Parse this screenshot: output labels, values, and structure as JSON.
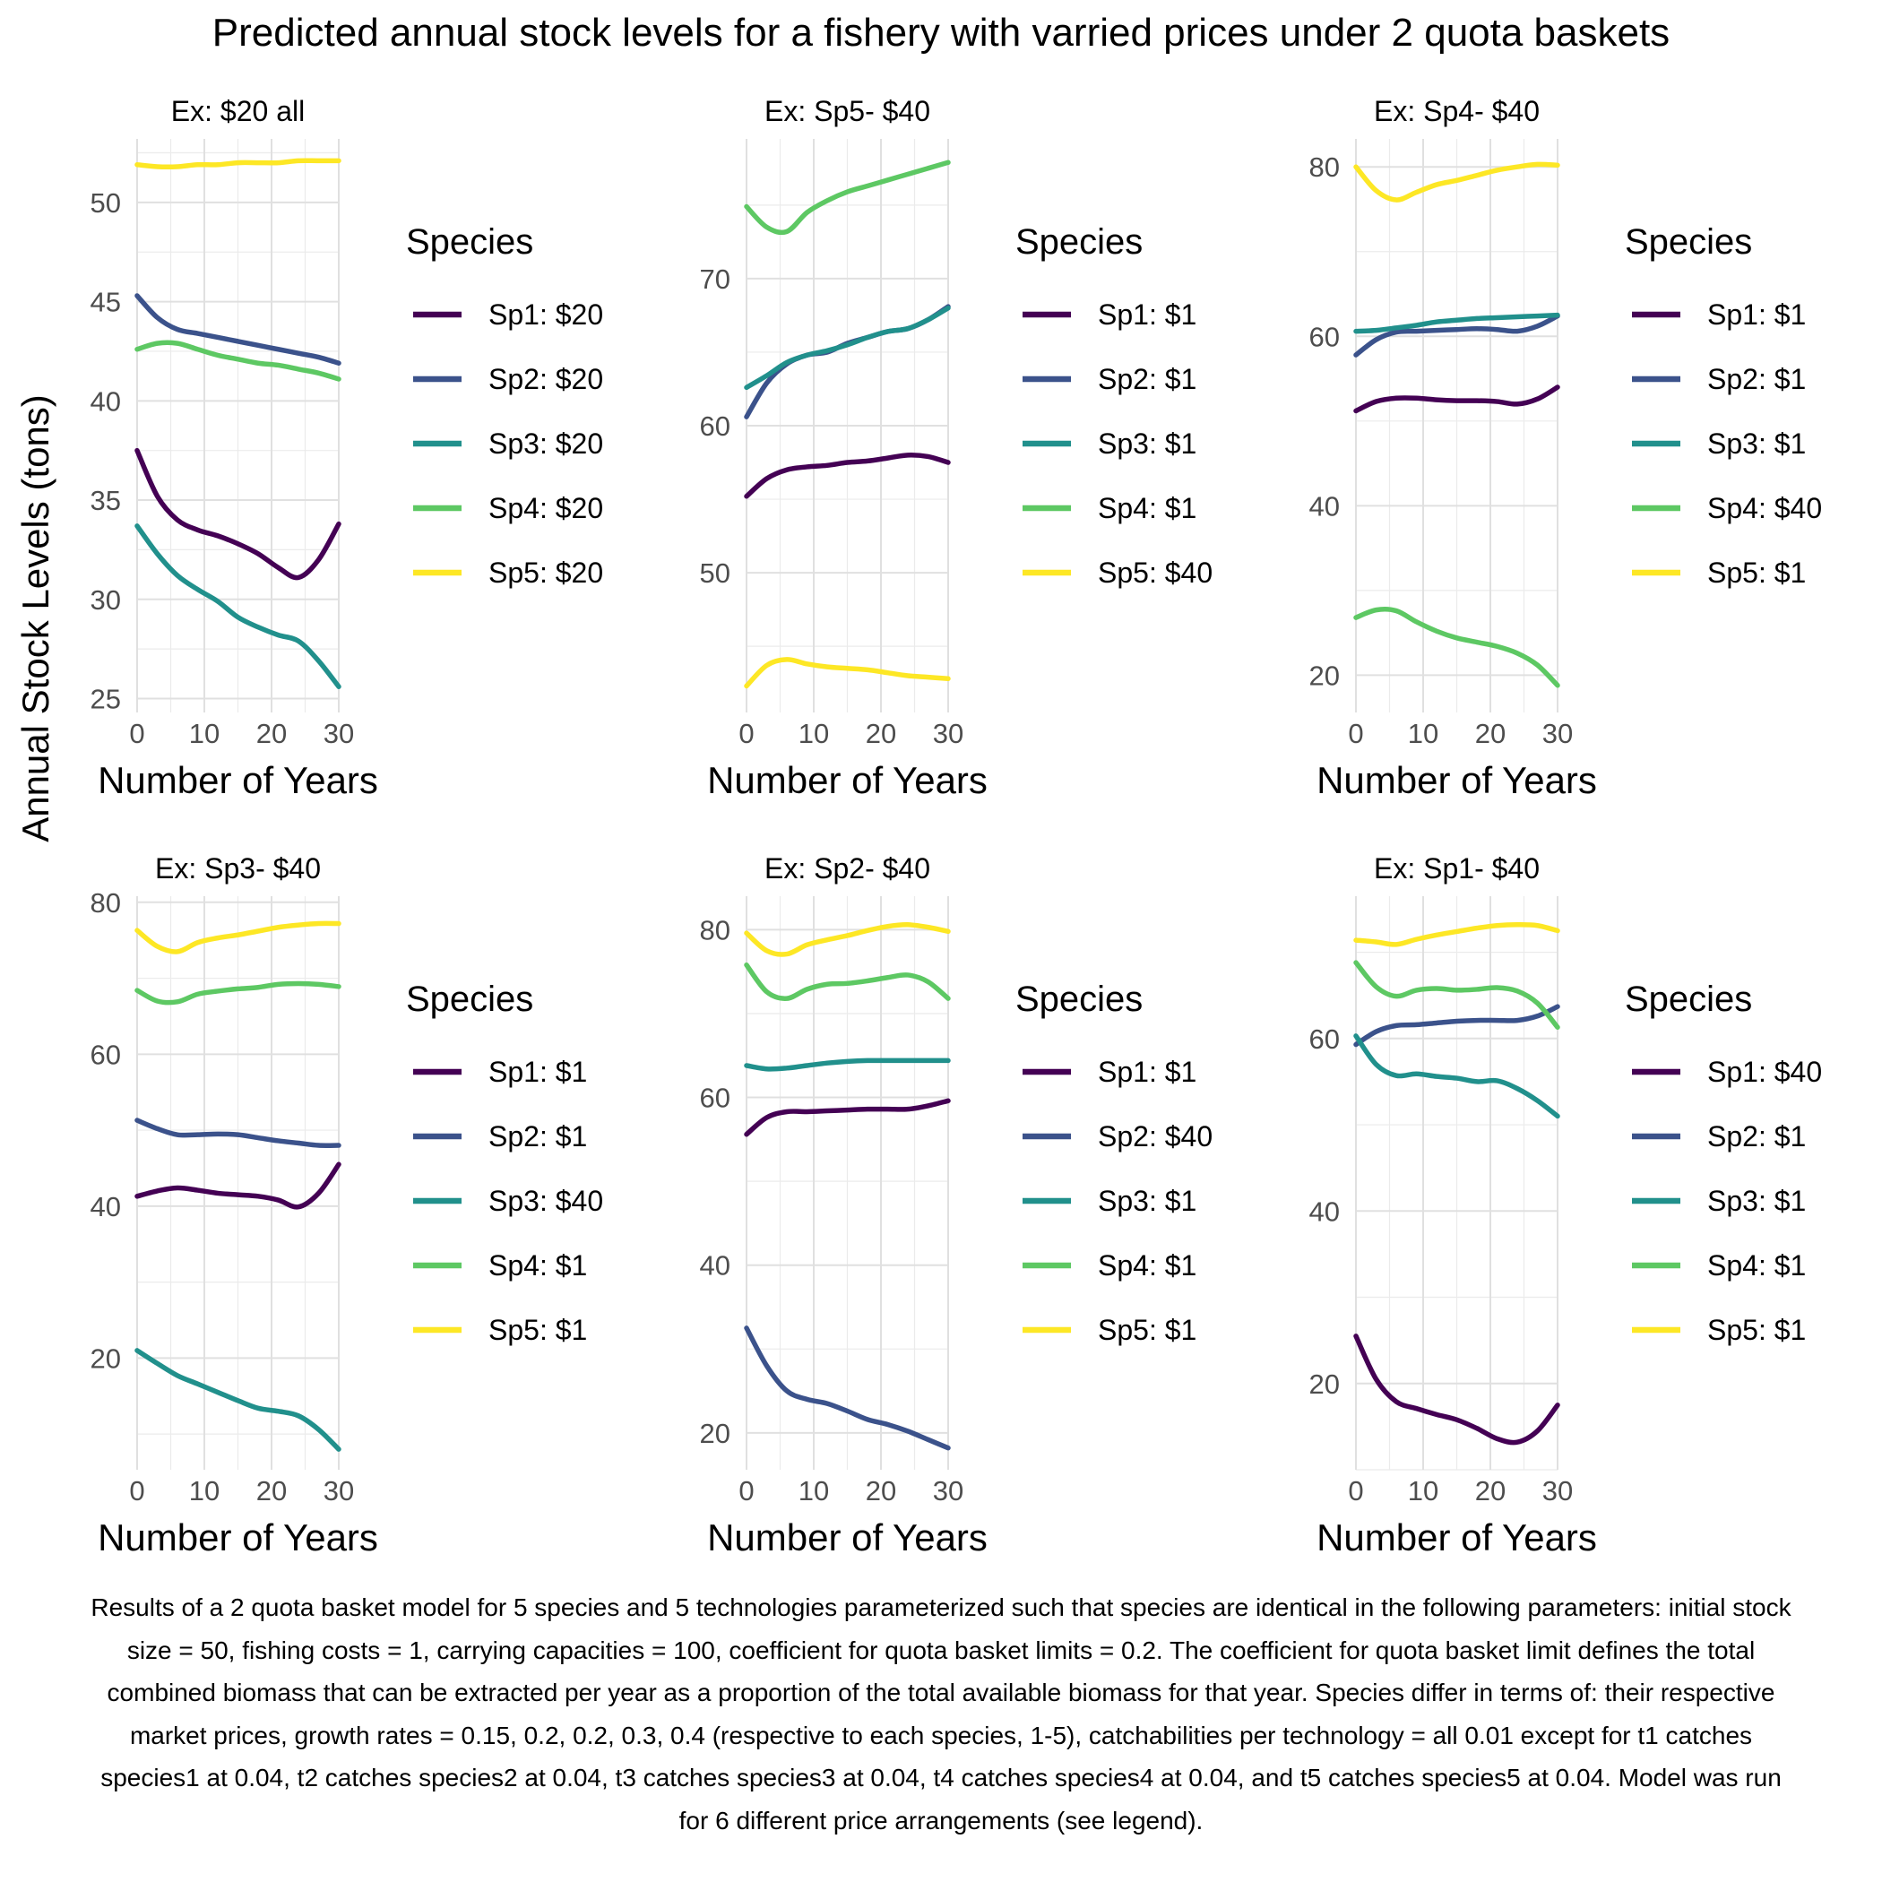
{
  "title": "Predicted annual stock levels for a fishery with varried prices under 2 quota baskets",
  "y_axis_label": "Annual Stock Levels (tons)",
  "caption": "Results of a 2 quota basket model for 5 species and 5 technologies parameterized such that species are identical in the following parameters: initial stock size = 50, fishing costs = 1, carrying capacities = 100, coefficient for quota basket limits = 0.2. The coefficient for quota basket limit defines the total combined biomass that can be extracted per year as a proportion of the total available biomass for that year. Species differ in terms of: their respective market prices, growth rates = 0.15, 0.2, 0.2, 0.3, 0.4 (respective to each species, 1-5), catchabilities per technology = all 0.01 except for t1 catches species1 at 0.04, t2 catches species2 at 0.04, t3 catches species3 at 0.04, t4 catches species4 at 0.04, and t5 catches species5 at 0.04. Model was run for 6 different price arrangements (see legend).",
  "colors": {
    "Sp1": "#440154",
    "Sp2": "#3b528b",
    "Sp3": "#21908c",
    "Sp4": "#5dc863",
    "Sp5": "#fde725"
  },
  "chart_data": [
    {
      "type": "line",
      "title": "Ex: $20 all",
      "xlabel": "Number of Years",
      "xlim": [
        0,
        30
      ],
      "xticks": [
        0,
        10,
        20,
        30
      ],
      "ylim": [
        24.3,
        53.2
      ],
      "yticks": [
        25,
        30,
        35,
        40,
        45,
        50
      ],
      "legend_title": "Species",
      "x": [
        0,
        3,
        6,
        9,
        12,
        15,
        18,
        21,
        24,
        27,
        30
      ],
      "series": [
        {
          "name": "Sp1: $20",
          "key": "Sp1",
          "values": [
            37.5,
            35.2,
            34.0,
            33.5,
            33.2,
            32.8,
            32.3,
            31.6,
            31.1,
            32.0,
            33.8
          ]
        },
        {
          "name": "Sp2: $20",
          "key": "Sp2",
          "values": [
            45.3,
            44.2,
            43.6,
            43.4,
            43.2,
            43.0,
            42.8,
            42.6,
            42.4,
            42.2,
            41.9
          ]
        },
        {
          "name": "Sp3: $20",
          "key": "Sp3",
          "values": [
            33.7,
            32.3,
            31.2,
            30.5,
            29.9,
            29.1,
            28.6,
            28.2,
            27.9,
            26.9,
            25.6
          ]
        },
        {
          "name": "Sp4: $20",
          "key": "Sp4",
          "values": [
            42.6,
            42.9,
            42.9,
            42.6,
            42.3,
            42.1,
            41.9,
            41.8,
            41.6,
            41.4,
            41.1
          ]
        },
        {
          "name": "Sp5: $20",
          "key": "Sp5",
          "values": [
            51.9,
            51.8,
            51.8,
            51.9,
            51.9,
            52.0,
            52.0,
            52.0,
            52.1,
            52.1,
            52.1
          ]
        }
      ]
    },
    {
      "type": "line",
      "title": "Ex: Sp5- $40",
      "xlabel": "Number of Years",
      "xlim": [
        0,
        30
      ],
      "xticks": [
        0,
        10,
        20,
        30
      ],
      "ylim": [
        40.5,
        79.5
      ],
      "yticks": [
        50,
        60,
        70
      ],
      "legend_title": "Species",
      "x": [
        0,
        3,
        6,
        9,
        12,
        15,
        18,
        21,
        24,
        27,
        30
      ],
      "series": [
        {
          "name": "Sp1: $1",
          "key": "Sp1",
          "values": [
            55.2,
            56.4,
            57.0,
            57.2,
            57.3,
            57.5,
            57.6,
            57.8,
            58.0,
            57.9,
            57.5
          ]
        },
        {
          "name": "Sp2: $1",
          "key": "Sp2",
          "values": [
            60.6,
            62.9,
            64.2,
            64.8,
            65.0,
            65.6,
            66.0,
            66.4,
            66.6,
            67.2,
            68.1
          ]
        },
        {
          "name": "Sp3: $1",
          "key": "Sp3",
          "values": [
            62.6,
            63.4,
            64.3,
            64.8,
            65.1,
            65.5,
            66.0,
            66.4,
            66.6,
            67.2,
            68.0
          ]
        },
        {
          "name": "Sp4: $1",
          "key": "Sp4",
          "values": [
            74.9,
            73.5,
            73.2,
            74.5,
            75.3,
            75.9,
            76.3,
            76.7,
            77.1,
            77.5,
            77.9
          ]
        },
        {
          "name": "Sp5: $40",
          "key": "Sp5",
          "values": [
            42.3,
            43.7,
            44.1,
            43.8,
            43.6,
            43.5,
            43.4,
            43.2,
            43.0,
            42.9,
            42.8
          ]
        }
      ]
    },
    {
      "type": "line",
      "title": "Ex: Sp4- $40",
      "xlabel": "Number of Years",
      "xlim": [
        0,
        30
      ],
      "xticks": [
        0,
        10,
        20,
        30
      ],
      "ylim": [
        15.6,
        83.3
      ],
      "yticks": [
        20,
        40,
        60,
        80
      ],
      "legend_title": "Species",
      "x": [
        0,
        3,
        6,
        9,
        12,
        15,
        18,
        21,
        24,
        27,
        30
      ],
      "series": [
        {
          "name": "Sp1: $1",
          "key": "Sp1",
          "values": [
            51.2,
            52.3,
            52.7,
            52.7,
            52.5,
            52.4,
            52.4,
            52.3,
            52.0,
            52.6,
            54.0
          ]
        },
        {
          "name": "Sp2: $1",
          "key": "Sp2",
          "values": [
            57.8,
            59.6,
            60.5,
            60.6,
            60.7,
            60.8,
            60.9,
            60.8,
            60.6,
            61.2,
            62.4
          ]
        },
        {
          "name": "Sp3: $1",
          "key": "Sp3",
          "values": [
            60.6,
            60.7,
            61.0,
            61.3,
            61.7,
            61.9,
            62.1,
            62.2,
            62.3,
            62.4,
            62.5
          ]
        },
        {
          "name": "Sp4: $40",
          "key": "Sp4",
          "values": [
            26.8,
            27.7,
            27.6,
            26.3,
            25.2,
            24.4,
            23.9,
            23.4,
            22.6,
            21.2,
            18.8
          ]
        },
        {
          "name": "Sp5: $1",
          "key": "Sp5",
          "values": [
            80.0,
            77.2,
            76.1,
            77.0,
            77.9,
            78.4,
            79.0,
            79.6,
            80.0,
            80.3,
            80.2
          ]
        }
      ]
    },
    {
      "type": "line",
      "title": "Ex: Sp3- $40",
      "xlabel": "Number of Years",
      "xlim": [
        0,
        30
      ],
      "xticks": [
        0,
        10,
        20,
        30
      ],
      "ylim": [
        5.3,
        80.8
      ],
      "yticks": [
        20,
        40,
        60,
        80
      ],
      "legend_title": "Species",
      "x": [
        0,
        3,
        6,
        9,
        12,
        15,
        18,
        21,
        24,
        27,
        30
      ],
      "series": [
        {
          "name": "Sp1: $1",
          "key": "Sp1",
          "values": [
            41.3,
            42.0,
            42.4,
            42.1,
            41.7,
            41.5,
            41.3,
            40.8,
            39.9,
            41.7,
            45.5
          ]
        },
        {
          "name": "Sp2: $1",
          "key": "Sp2",
          "values": [
            51.3,
            50.2,
            49.4,
            49.4,
            49.5,
            49.4,
            49.0,
            48.6,
            48.3,
            48.0,
            48.0
          ]
        },
        {
          "name": "Sp3: $40",
          "key": "Sp3",
          "values": [
            21.0,
            19.3,
            17.7,
            16.6,
            15.5,
            14.4,
            13.4,
            13.0,
            12.4,
            10.6,
            8.0
          ]
        },
        {
          "name": "Sp4: $1",
          "key": "Sp4",
          "values": [
            68.4,
            67.0,
            66.9,
            67.9,
            68.3,
            68.6,
            68.8,
            69.2,
            69.3,
            69.2,
            68.9
          ]
        },
        {
          "name": "Sp5: $1",
          "key": "Sp5",
          "values": [
            76.3,
            74.2,
            73.5,
            74.7,
            75.3,
            75.7,
            76.2,
            76.7,
            77.0,
            77.2,
            77.2
          ]
        }
      ]
    },
    {
      "type": "line",
      "title": "Ex: Sp2- $40",
      "xlabel": "Number of Years",
      "xlim": [
        0,
        30
      ],
      "xticks": [
        0,
        10,
        20,
        30
      ],
      "ylim": [
        15.6,
        84.0
      ],
      "yticks": [
        20,
        40,
        60,
        80
      ],
      "legend_title": "Species",
      "x": [
        0,
        3,
        6,
        9,
        12,
        15,
        18,
        21,
        24,
        27,
        30
      ],
      "series": [
        {
          "name": "Sp1: $1",
          "key": "Sp1",
          "values": [
            55.6,
            57.6,
            58.3,
            58.3,
            58.4,
            58.5,
            58.6,
            58.6,
            58.6,
            59.0,
            59.6
          ]
        },
        {
          "name": "Sp2: $40",
          "key": "Sp2",
          "values": [
            32.5,
            28.0,
            25.0,
            24.0,
            23.5,
            22.6,
            21.6,
            21.0,
            20.2,
            19.2,
            18.2
          ]
        },
        {
          "name": "Sp3: $1",
          "key": "Sp3",
          "values": [
            63.8,
            63.4,
            63.5,
            63.8,
            64.1,
            64.3,
            64.4,
            64.4,
            64.4,
            64.4,
            64.4
          ]
        },
        {
          "name": "Sp4: $1",
          "key": "Sp4",
          "values": [
            75.8,
            72.6,
            71.8,
            72.9,
            73.5,
            73.6,
            73.9,
            74.3,
            74.6,
            73.8,
            71.8
          ]
        },
        {
          "name": "Sp5: $1",
          "key": "Sp5",
          "values": [
            79.6,
            77.5,
            77.1,
            78.2,
            78.8,
            79.3,
            79.9,
            80.4,
            80.6,
            80.3,
            79.8
          ]
        }
      ]
    },
    {
      "type": "line",
      "title": "Ex: Sp1- $40",
      "xlabel": "Number of Years",
      "xlim": [
        0,
        30
      ],
      "xticks": [
        0,
        10,
        20,
        30
      ],
      "ylim": [
        10.0,
        76.5
      ],
      "yticks": [
        20,
        40,
        60
      ],
      "legend_title": "Species",
      "x": [
        0,
        3,
        6,
        9,
        12,
        15,
        18,
        21,
        24,
        27,
        30
      ],
      "series": [
        {
          "name": "Sp1: $40",
          "key": "Sp1",
          "values": [
            25.5,
            20.5,
            17.9,
            17.1,
            16.4,
            15.8,
            14.8,
            13.6,
            13.2,
            14.5,
            17.5
          ]
        },
        {
          "name": "Sp2: $1",
          "key": "Sp2",
          "values": [
            59.3,
            60.8,
            61.5,
            61.6,
            61.8,
            62.0,
            62.1,
            62.1,
            62.1,
            62.6,
            63.7
          ]
        },
        {
          "name": "Sp3: $1",
          "key": "Sp3",
          "values": [
            60.3,
            57.0,
            55.7,
            55.9,
            55.6,
            55.4,
            55.0,
            55.1,
            54.2,
            52.8,
            51.0
          ]
        },
        {
          "name": "Sp4: $1",
          "key": "Sp4",
          "values": [
            68.8,
            66.0,
            64.9,
            65.6,
            65.8,
            65.6,
            65.7,
            65.9,
            65.5,
            64.1,
            61.3
          ]
        },
        {
          "name": "Sp5: $1",
          "key": "Sp5",
          "values": [
            71.4,
            71.2,
            70.9,
            71.5,
            72.0,
            72.4,
            72.8,
            73.1,
            73.2,
            73.1,
            72.5
          ]
        }
      ]
    }
  ]
}
